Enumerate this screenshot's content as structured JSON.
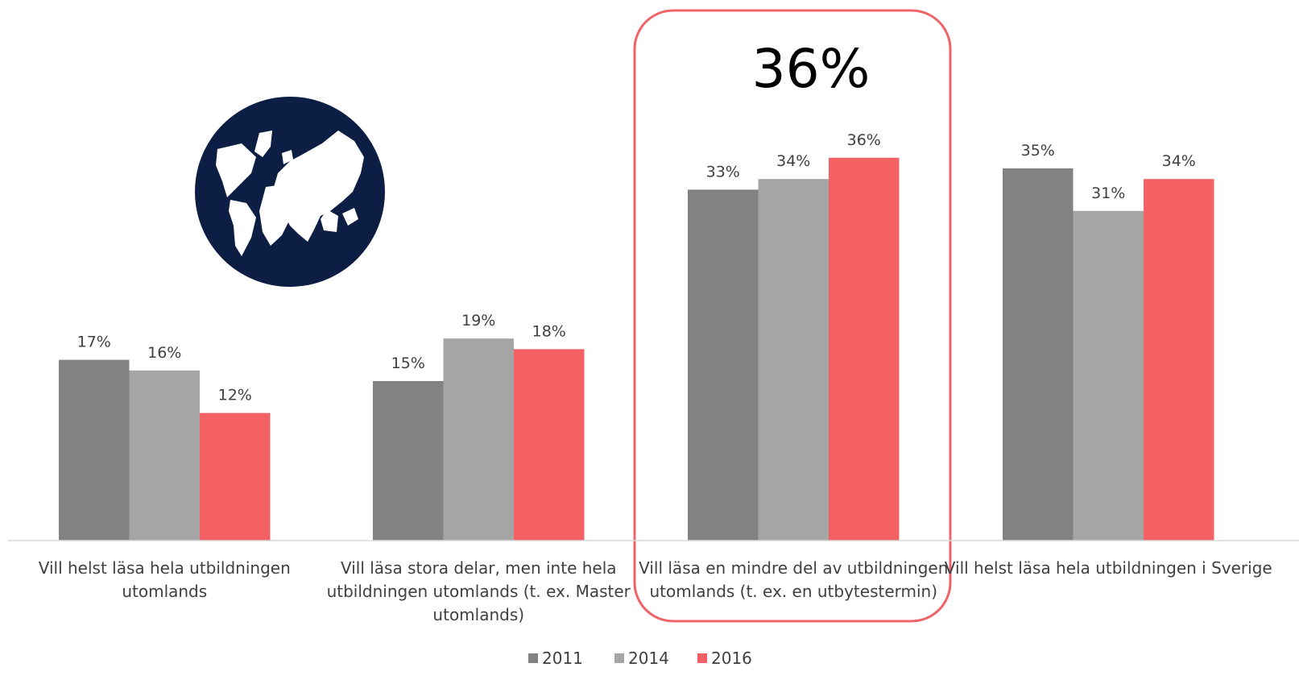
{
  "colors": {
    "series": [
      "#828282",
      "#a5a5a5",
      "#f46165"
    ],
    "highlight_border": "#ee6468",
    "globe": "#0d1e45",
    "axis": "#d9d9d9"
  },
  "icons": {
    "globe": "globe-icon"
  },
  "callout": {
    "text": "36%",
    "highlighted_category_index": 2
  },
  "chart_data": {
    "type": "bar",
    "title": "",
    "xlabel": "",
    "ylabel": "",
    "ylim": [
      0,
      38
    ],
    "grid": false,
    "legend_position": "bottom",
    "categories": [
      [
        "Vill helst läsa hela utbildningen",
        "utomlands"
      ],
      [
        "Vill läsa stora delar, men inte hela",
        "utbildningen utomlands (t. ex. Master",
        "utomlands)"
      ],
      [
        "Vill läsa en mindre del av utbildningen",
        "utomlands (t. ex. en utbytestermin)"
      ],
      [
        "Vill helst läsa hela utbildningen i Sverige"
      ]
    ],
    "series": [
      {
        "name": "2011",
        "values": [
          17,
          15,
          33,
          35
        ],
        "labels": [
          "17%",
          "15%",
          "33%",
          "35%"
        ]
      },
      {
        "name": "2014",
        "values": [
          16,
          19,
          34,
          31
        ],
        "labels": [
          "16%",
          "19%",
          "34%",
          "31%"
        ]
      },
      {
        "name": "2016",
        "values": [
          12,
          18,
          36,
          34
        ],
        "labels": [
          "12%",
          "18%",
          "36%",
          "34%"
        ]
      }
    ]
  }
}
